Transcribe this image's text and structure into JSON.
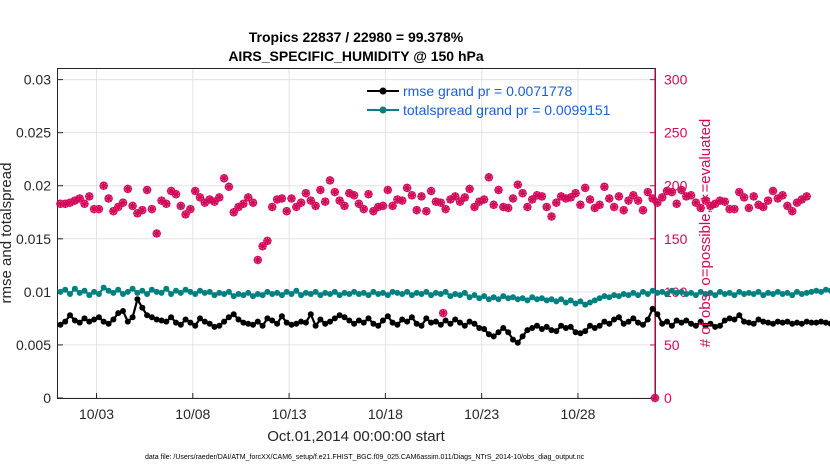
{
  "chart_data": {
    "type": "line",
    "title": "Tropics 22837 / 22980 = 99.378%",
    "subtitle": "AIRS_SPECIFIC_HUMIDITY @ 150 hPa",
    "xlabel": "Oct.01,2014 00:00:00 start",
    "ylabel": "rmse and totalspread",
    "ylabel_right": "# of obs: o=possible; ∗=evaluated",
    "xlim": [
      1.0,
      32.0
    ],
    "ylim": [
      0,
      0.031
    ],
    "ylim_right": [
      0,
      310
    ],
    "x_ticks": [
      {
        "x": 3,
        "label": "10/03"
      },
      {
        "x": 8,
        "label": "10/08"
      },
      {
        "x": 13,
        "label": "10/13"
      },
      {
        "x": 18,
        "label": "10/18"
      },
      {
        "x": 23,
        "label": "10/23"
      },
      {
        "x": 28,
        "label": "10/28"
      }
    ],
    "y_ticks": [
      "0",
      "0.005",
      "0.01",
      "0.015",
      "0.02",
      "0.025",
      "0.03"
    ],
    "y_tick_values": [
      0,
      0.005,
      0.01,
      0.015,
      0.02,
      0.025,
      0.03
    ],
    "y_ticks_right": [
      "0",
      "50",
      "100",
      "150",
      "200",
      "250",
      "300"
    ],
    "y_tick_values_right": [
      0,
      50,
      100,
      150,
      200,
      250,
      300
    ],
    "x_start": 1.125,
    "x_step": 0.25,
    "series": [
      {
        "name": "rmse",
        "legend": "rmse grand pr = 0.0071778",
        "color": "#000000",
        "axis": "left",
        "values": [
          0.0069,
          0.0072,
          0.0078,
          0.0073,
          0.0071,
          0.0075,
          0.0072,
          0.0074,
          0.0076,
          0.0072,
          0.007,
          0.0074,
          0.008,
          0.0082,
          0.0072,
          0.0076,
          0.0093,
          0.0085,
          0.0078,
          0.0076,
          0.0074,
          0.0073,
          0.0072,
          0.0076,
          0.0071,
          0.0069,
          0.0074,
          0.0071,
          0.0068,
          0.0075,
          0.0072,
          0.007,
          0.0067,
          0.0068,
          0.0072,
          0.0076,
          0.0079,
          0.0074,
          0.0071,
          0.007,
          0.0069,
          0.0072,
          0.0068,
          0.0075,
          0.0073,
          0.007,
          0.0077,
          0.0071,
          0.0069,
          0.007,
          0.0072,
          0.0071,
          0.0079,
          0.0068,
          0.0074,
          0.007,
          0.0072,
          0.0075,
          0.0078,
          0.0076,
          0.0073,
          0.007,
          0.0073,
          0.0071,
          0.0075,
          0.007,
          0.0068,
          0.0073,
          0.0077,
          0.0071,
          0.0069,
          0.0074,
          0.0072,
          0.0076,
          0.007,
          0.0068,
          0.0075,
          0.0071,
          0.0072,
          0.0069,
          0.0073,
          0.007,
          0.0074,
          0.0071,
          0.0068,
          0.0072,
          0.007,
          0.0066,
          0.0065,
          0.006,
          0.0058,
          0.0062,
          0.0066,
          0.0062,
          0.0055,
          0.0052,
          0.0058,
          0.0064,
          0.0066,
          0.0068,
          0.0065,
          0.0067,
          0.0064,
          0.0063,
          0.0068,
          0.0066,
          0.0067,
          0.0062,
          0.0061,
          0.0063,
          0.0068,
          0.0066,
          0.0068,
          0.0072,
          0.007,
          0.0074,
          0.0076,
          0.007,
          0.0072,
          0.0075,
          0.0071,
          0.0069,
          0.0074,
          0.0084,
          0.0079,
          0.007,
          0.0072,
          0.0068,
          0.0073,
          0.0071,
          0.0073,
          0.007,
          0.0068,
          0.0072,
          0.0068,
          0.007,
          0.0067,
          0.0068,
          0.0073,
          0.0075,
          0.0074,
          0.0078,
          0.0072,
          0.0071,
          0.007,
          0.0074,
          0.0072,
          0.0071,
          0.007,
          0.0072,
          0.0071,
          0.0072,
          0.007,
          0.0071,
          0.007,
          0.0072,
          0.0071,
          0.0071,
          0.0072,
          0.0071,
          0.007,
          0.0071
        ]
      },
      {
        "name": "totalspread",
        "legend": "totalspread grand pr = 0.0099151",
        "color": "#008080",
        "axis": "left",
        "values": [
          0.01,
          0.0102,
          0.0098,
          0.0103,
          0.0099,
          0.0101,
          0.0097,
          0.01,
          0.0098,
          0.0104,
          0.0101,
          0.0099,
          0.0102,
          0.0098,
          0.01,
          0.0103,
          0.0099,
          0.0101,
          0.0098,
          0.0102,
          0.01,
          0.0099,
          0.0103,
          0.0098,
          0.0101,
          0.0099,
          0.0102,
          0.01,
          0.0098,
          0.0101,
          0.0099,
          0.01,
          0.0097,
          0.0099,
          0.0098,
          0.01,
          0.0096,
          0.0098,
          0.0097,
          0.0099,
          0.0096,
          0.0098,
          0.0097,
          0.01,
          0.0098,
          0.0099,
          0.0097,
          0.01,
          0.0098,
          0.0101,
          0.0097,
          0.0099,
          0.0098,
          0.01,
          0.0097,
          0.0099,
          0.0098,
          0.01,
          0.0097,
          0.0099,
          0.0098,
          0.01,
          0.0098,
          0.0099,
          0.0097,
          0.01,
          0.0098,
          0.0099,
          0.0097,
          0.01,
          0.0099,
          0.0098,
          0.01,
          0.0097,
          0.0099,
          0.0098,
          0.01,
          0.0097,
          0.0099,
          0.0098,
          0.01,
          0.0096,
          0.0098,
          0.0097,
          0.0099,
          0.0095,
          0.0097,
          0.0094,
          0.0096,
          0.0093,
          0.0095,
          0.0093,
          0.0096,
          0.0094,
          0.0095,
          0.0093,
          0.0094,
          0.0092,
          0.0095,
          0.0093,
          0.0094,
          0.0092,
          0.0093,
          0.0091,
          0.0093,
          0.009,
          0.0092,
          0.0089,
          0.0091,
          0.0088,
          0.009,
          0.0092,
          0.0094,
          0.0096,
          0.0095,
          0.0097,
          0.0096,
          0.0098,
          0.0097,
          0.0099,
          0.0097,
          0.01,
          0.0098,
          0.0101,
          0.0099,
          0.01,
          0.0098,
          0.0101,
          0.0099,
          0.01,
          0.0098,
          0.0099,
          0.0097,
          0.01,
          0.0098,
          0.0099,
          0.0097,
          0.01,
          0.0098,
          0.0099,
          0.0097,
          0.01,
          0.0098,
          0.0099,
          0.0098,
          0.01,
          0.0097,
          0.0099,
          0.0098,
          0.01,
          0.0098,
          0.0099,
          0.0097,
          0.01,
          0.0098,
          0.0099,
          0.01,
          0.0101,
          0.01,
          0.0102,
          0.0101
        ]
      },
      {
        "name": "nobs",
        "legend": "",
        "color": "#d10a5a",
        "axis": "right",
        "values": [
          183,
          183,
          184,
          186,
          188,
          183,
          190,
          178,
          178,
          200,
          188,
          176,
          180,
          184,
          197,
          181,
          174,
          177,
          196,
          178,
          155,
          186,
          183,
          195,
          192,
          181,
          173,
          178,
          195,
          189,
          184,
          187,
          185,
          189,
          207,
          199,
          175,
          180,
          183,
          189,
          184,
          130,
          143,
          148,
          180,
          187,
          188,
          176,
          188,
          180,
          184,
          193,
          186,
          181,
          196,
          185,
          205,
          194,
          186,
          181,
          193,
          191,
          183,
          178,
          192,
          176,
          180,
          181,
          196,
          181,
          187,
          186,
          198,
          191,
          177,
          190,
          176,
          195,
          185,
          184,
          178,
          187,
          190,
          185,
          189,
          197,
          180,
          185,
          187,
          208,
          182,
          196,
          180,
          179,
          188,
          201,
          193,
          180,
          187,
          191,
          190,
          180,
          171,
          184,
          190,
          188,
          189,
          193,
          182,
          198,
          187,
          179,
          182,
          199,
          188,
          180,
          190,
          177,
          186,
          191,
          186,
          177,
          194,
          188,
          184,
          189,
          195,
          194,
          183,
          196,
          190,
          191,
          184,
          179,
          186,
          181,
          183,
          186,
          185,
          178,
          178,
          194,
          189,
          179,
          190,
          182,
          180,
          186,
          195,
          188,
          191,
          181,
          176,
          184,
          187,
          190
        ]
      },
      {
        "name": "outliers",
        "legend": "",
        "color": "#d10a5a",
        "axis": "right",
        "points": [
          [
            21.0,
            80
          ],
          [
            32.0,
            0
          ]
        ]
      }
    ]
  },
  "footer": "data file: /Users/raeder/DAI/ATM_forcXX/CAM6_setup/f.e21.FHIST_BGC.f09_025.CAM6assim.011/Diags_NTrS_2014-10/obs_diag_output.nc"
}
